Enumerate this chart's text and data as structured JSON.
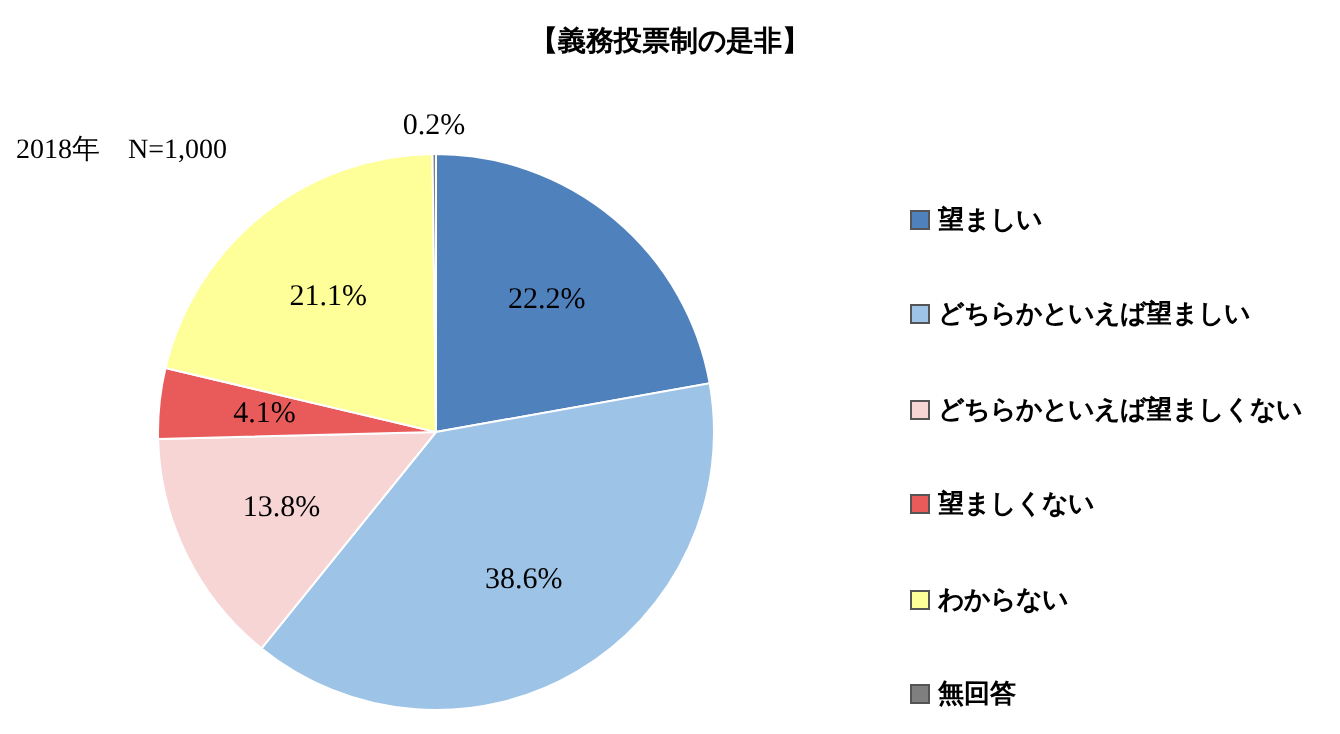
{
  "chart_data": {
    "type": "pie",
    "title": "【義務投票制の是非】",
    "annotations": [
      "2018年　N=1,000"
    ],
    "categories": [
      "望ましい",
      "どちらかといえば望ましい",
      "どちらかといえば望ましくない",
      "望ましくない",
      "わからない",
      "無回答"
    ],
    "values": [
      22.2,
      38.6,
      13.8,
      4.1,
      21.1,
      0.2
    ],
    "value_labels": [
      "22.2%",
      "38.6%",
      "13.8%",
      "4.1%",
      "21.1%",
      "0.2%"
    ],
    "colors": [
      "#4f81bd",
      "#9dc3e6",
      "#f8d5d5",
      "#e95b5b",
      "#ffff99",
      "#7f7f7f"
    ],
    "legend": "right"
  }
}
